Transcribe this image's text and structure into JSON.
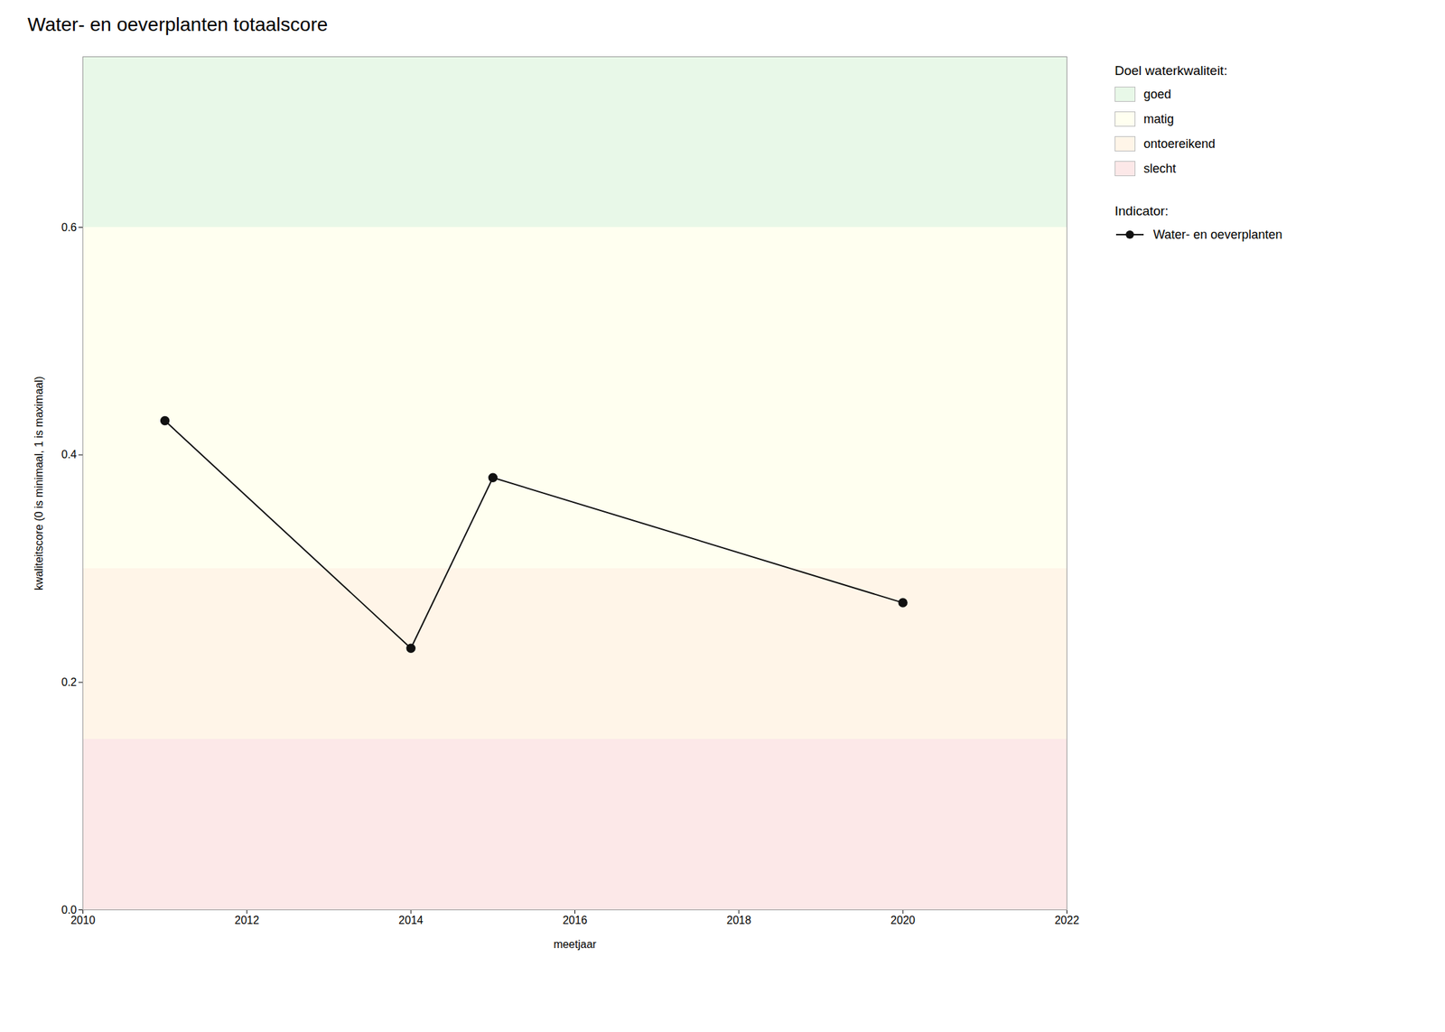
{
  "chart_data": {
    "type": "line",
    "title": "Water- en oeverplanten totaalscore",
    "xlabel": "meetjaar",
    "ylabel": "kwaliteitscore (0 is minimaal, 1 is maximaal)",
    "x": [
      2011,
      2014,
      2015,
      2020
    ],
    "series": [
      {
        "name": "Water- en oeverplanten",
        "color": "#111111",
        "marker": "circle",
        "values": [
          0.43,
          0.23,
          0.38,
          0.27
        ]
      }
    ],
    "xlim": [
      2010,
      2022
    ],
    "ylim": [
      0,
      0.75
    ],
    "xticks": [
      2010,
      2012,
      2014,
      2016,
      2018,
      2020,
      2022
    ],
    "yticks": [
      {
        "value": 0,
        "label": "0.0"
      },
      0.2,
      0.4,
      0.6
    ],
    "grid": true,
    "legend": "right",
    "zones_title": "Doel waterkwaliteit:",
    "series_title": "Indicator:",
    "zones": [
      {
        "label": "goed",
        "ymin": 0.6,
        "ymax": 0.75,
        "color": "#e8f8e8"
      },
      {
        "label": "matig",
        "ymin": 0.3,
        "ymax": 0.6,
        "color": "#fffff0"
      },
      {
        "label": "ontoereikend",
        "ymin": 0.15,
        "ymax": 0.3,
        "color": "#fff5e8"
      },
      {
        "label": "slecht",
        "ymin": 0.0,
        "ymax": 0.15,
        "color": "#fce8e8"
      }
    ]
  }
}
